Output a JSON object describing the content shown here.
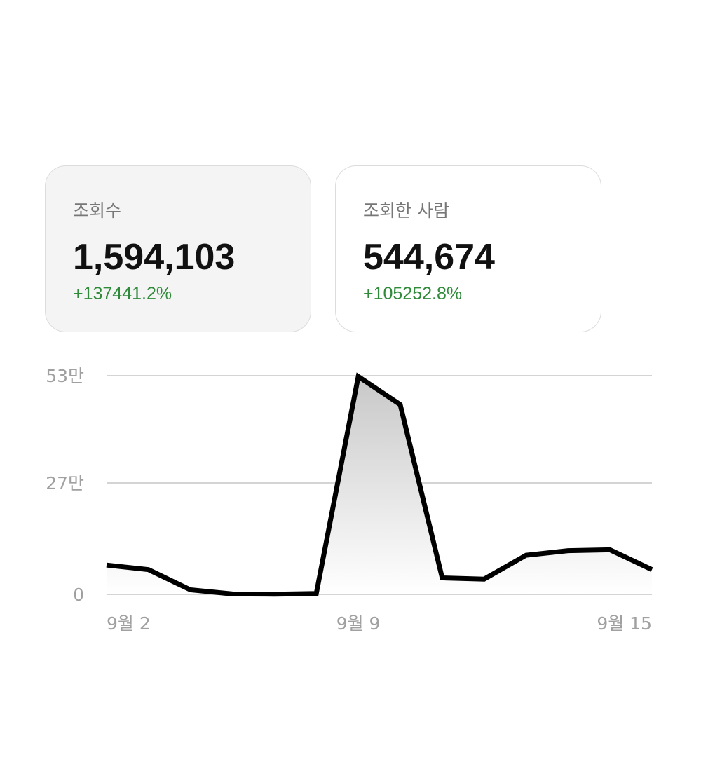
{
  "stats": {
    "views": {
      "label": "조회수",
      "value": "1,594,103",
      "change": "+137441.2%"
    },
    "viewers": {
      "label": "조회한 사람",
      "value": "544,674",
      "change": "+105252.8%"
    }
  },
  "colors": {
    "positive_change": "#2f8a3a",
    "line": "#000000",
    "grid": "#d4d4d4",
    "axis_text": "#a0a0a0",
    "selected_card_bg": "#f4f4f4"
  },
  "chart_data": {
    "type": "area",
    "x_labels": [
      "9월 2",
      "9월 9",
      "9월 15"
    ],
    "x_label_indices": [
      0,
      6,
      13
    ],
    "y_ticks": [
      {
        "value": 530000,
        "label": "53만"
      },
      {
        "value": 270000,
        "label": "27만"
      },
      {
        "value": 0,
        "label": "0"
      }
    ],
    "ylim": [
      0,
      530000
    ],
    "grid": true,
    "series": [
      {
        "values": [
          71000,
          60000,
          11000,
          1000,
          500,
          2000,
          528000,
          460000,
          40000,
          37000,
          95000,
          106000,
          108000,
          60000
        ]
      }
    ]
  }
}
